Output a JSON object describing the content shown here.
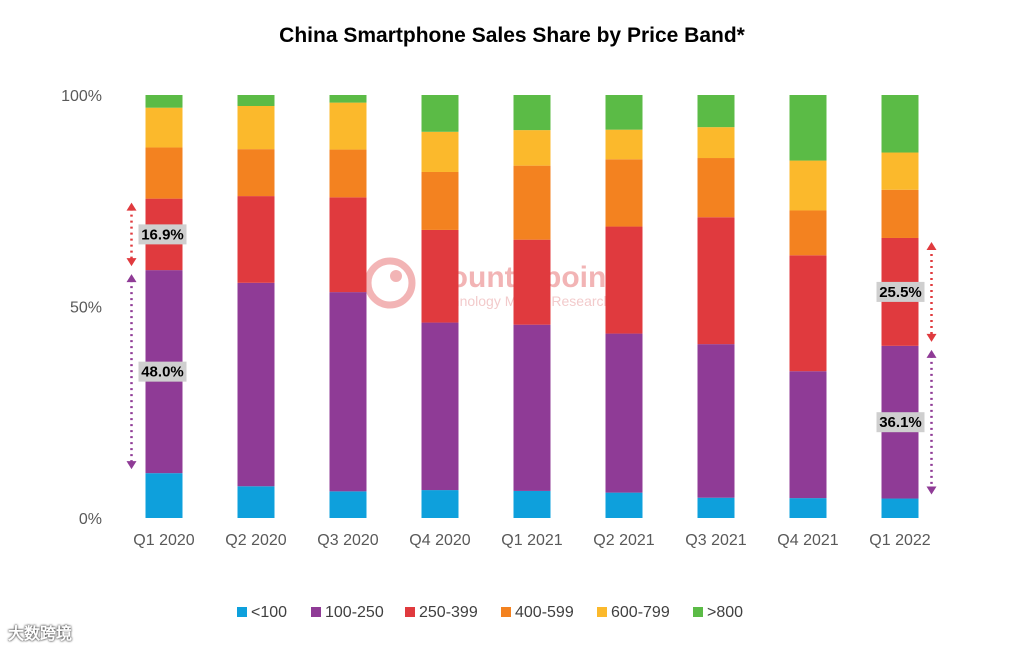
{
  "chart_data": {
    "type": "bar",
    "stacked": true,
    "title": "China Smartphone Sales Share by Price Band*",
    "xlabel": "",
    "ylabel": "",
    "ylim": [
      0,
      100
    ],
    "yticks": [
      "0%",
      "50%",
      "100%"
    ],
    "categories": [
      "Q1 2020",
      "Q2 2020",
      "Q3 2020",
      "Q4 2020",
      "Q1 2021",
      "Q2 2021",
      "Q3 2021",
      "Q4 2021",
      "Q1 2022"
    ],
    "series": [
      {
        "name": "<100",
        "color": "#0ea0dc",
        "values": [
          10.6,
          7.5,
          6.3,
          6.6,
          6.4,
          6.0,
          4.8,
          4.7,
          4.6
        ]
      },
      {
        "name": "100-250",
        "color": "#8f3b96",
        "values": [
          48.0,
          48.1,
          47.1,
          39.6,
          39.3,
          37.6,
          36.3,
          30.0,
          36.1
        ]
      },
      {
        "name": "250-399",
        "color": "#e03a3e",
        "values": [
          16.9,
          20.5,
          22.4,
          21.9,
          20.1,
          25.3,
          30.0,
          27.4,
          25.5
        ]
      },
      {
        "name": "400-599",
        "color": "#f38220",
        "values": [
          12.1,
          11.1,
          11.3,
          13.7,
          17.5,
          15.9,
          14.0,
          10.6,
          11.4
        ]
      },
      {
        "name": "600-799",
        "color": "#fbb92c",
        "values": [
          9.4,
          10.2,
          11.1,
          9.5,
          8.4,
          7.0,
          7.3,
          11.8,
          8.8
        ]
      },
      {
        "name": ">800",
        "color": "#5bbb46",
        "values": [
          3.0,
          2.6,
          1.8,
          8.7,
          8.3,
          8.2,
          7.6,
          15.5,
          13.6
        ]
      }
    ],
    "annotations": [
      {
        "category": "Q1 2020",
        "series": "250-399",
        "label": "16.9%"
      },
      {
        "category": "Q1 2020",
        "series": "100-250",
        "label": "48.0%"
      },
      {
        "category": "Q1 2022",
        "series": "250-399",
        "label": "25.5%"
      },
      {
        "category": "Q1 2022",
        "series": "100-250",
        "label": "36.1%"
      }
    ],
    "legend_position": "bottom"
  },
  "watermark": {
    "title": "Counterpoint",
    "subtitle": "Technology Market Research"
  },
  "corner_logo": "大数跨境"
}
